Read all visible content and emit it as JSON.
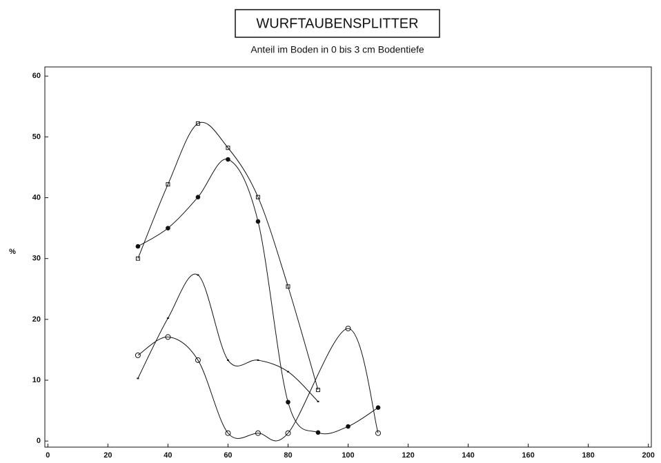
{
  "chart_data": {
    "type": "scatter",
    "title": "WURFTAUBENSPLITTER",
    "subtitle": "Anteil im Boden in 0 bis 3 cm Bodentiefe",
    "y_label": "%",
    "xlim": [
      -1,
      201
    ],
    "ylim": [
      -1,
      61.5
    ],
    "xticks": [
      0,
      20,
      40,
      60,
      80,
      100,
      120,
      140,
      160,
      180,
      200
    ],
    "yticks": [
      0,
      10,
      20,
      30,
      40,
      50,
      60
    ],
    "series": [
      {
        "marker": "square",
        "color": "#111111",
        "x": [
          30,
          40,
          50,
          60,
          70,
          80,
          90
        ],
        "values": [
          30,
          42.2,
          52.2,
          48.2,
          40.1,
          25.4,
          8.4
        ]
      },
      {
        "marker": "filled-circle",
        "color": "#111111",
        "x": [
          30,
          40,
          50,
          60,
          70,
          80,
          90,
          100,
          110
        ],
        "values": [
          32,
          35,
          40.1,
          46.3,
          36.1,
          6.4,
          1.4,
          2.4,
          5.5
        ]
      },
      {
        "marker": "dash",
        "color": "#111111",
        "x": [
          30,
          40,
          50,
          60,
          70,
          80,
          90
        ],
        "values": [
          10.3,
          20.2,
          27.3,
          13.3,
          13.3,
          11.4,
          6.5
        ]
      },
      {
        "marker": "circle",
        "color": "#111111",
        "x": [
          30,
          40,
          50,
          60,
          70,
          80,
          100,
          110
        ],
        "values": [
          14.1,
          17.1,
          13.3,
          1.3,
          1.3,
          1.3,
          18.5,
          1.3
        ]
      }
    ]
  }
}
